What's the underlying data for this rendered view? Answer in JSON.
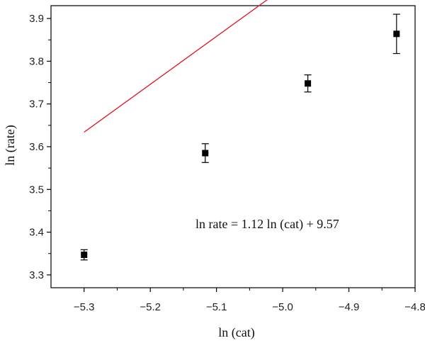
{
  "chart_data": {
    "type": "scatter",
    "xlabel": "ln (cat)",
    "ylabel": "ln (rate)",
    "xlim": [
      -5.35,
      -4.8
    ],
    "ylim": [
      3.27,
      3.93
    ],
    "x_ticks": [
      -5.3,
      -5.2,
      -5.1,
      -5.0,
      -4.9,
      -4.8
    ],
    "x_tick_labels": [
      "−5.3",
      "−5.2",
      "−5.1",
      "−5.0",
      "−4.9",
      "−4.8"
    ],
    "y_ticks": [
      3.3,
      3.4,
      3.5,
      3.6,
      3.7,
      3.8,
      3.9
    ],
    "y_tick_labels": [
      "3.3",
      "3.4",
      "3.5",
      "3.6",
      "3.7",
      "3.8",
      "3.9"
    ],
    "grid": false,
    "series": [
      {
        "x": [
          -5.3,
          -5.117,
          -4.962,
          -4.828
        ],
        "y": [
          3.347,
          3.585,
          3.748,
          3.864
        ],
        "yerr": [
          0.012,
          0.022,
          0.02,
          0.046
        ],
        "marker": "square",
        "color": "#000000"
      }
    ],
    "fit": {
      "slope": 1.12,
      "intercept": 9.57,
      "x_range": [
        -5.3,
        -4.828
      ],
      "color": "#e0141e"
    },
    "annotation": "ln rate = 1.12 ln (cat) + 9.57"
  }
}
